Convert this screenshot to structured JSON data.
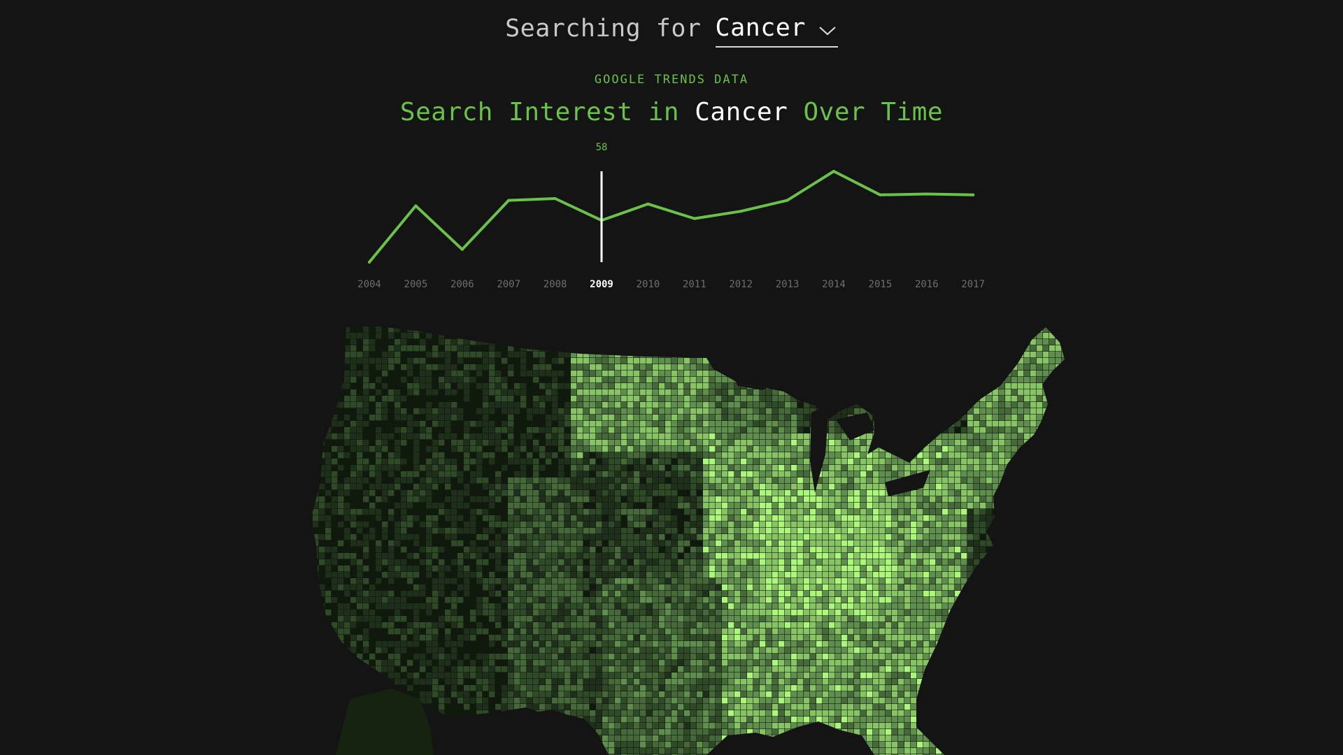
{
  "search": {
    "prefix": "Searching for",
    "term": "Cancer"
  },
  "header": {
    "kicker": "GOOGLE TRENDS DATA",
    "title_prefix": "Search Interest in",
    "title_term": "Cancer",
    "title_suffix": "Over Time"
  },
  "colors": {
    "background": "#141414",
    "accent": "#6ac24b",
    "highlight": "#ffffff",
    "map_scale": [
      "#0f1a0d",
      "#1e3019",
      "#2f4a26",
      "#46693a",
      "#5f8f4d",
      "#86c464",
      "#aaf77a"
    ]
  },
  "chart_data": {
    "type": "line",
    "x": [
      "2004",
      "2005",
      "2006",
      "2007",
      "2008",
      "2009",
      "2010",
      "2011",
      "2012",
      "2013",
      "2014",
      "2015",
      "2016",
      "2017"
    ],
    "series": [
      {
        "values": [
          35,
          66,
          42,
          69,
          70,
          58,
          67,
          59,
          63,
          69,
          85,
          72,
          72.5,
          72
        ]
      }
    ],
    "selected_year": "2009",
    "selected_value": "58",
    "ylim": [
      35,
      85
    ]
  },
  "map": {
    "type": "choropleth",
    "region": "United States counties"
  }
}
